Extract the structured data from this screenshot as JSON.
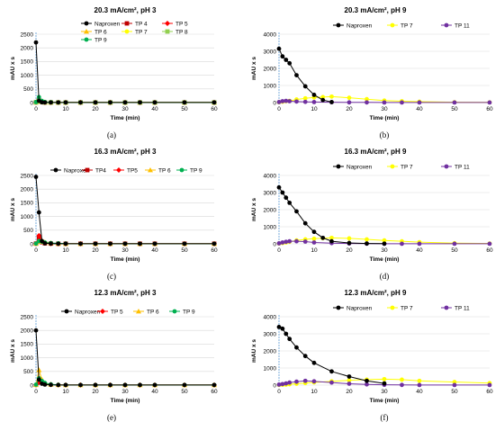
{
  "colors": {
    "Naproxen": "#000000",
    "TP 4": "#c00000",
    "TP 5": "#ff0000",
    "TP 6": "#ffc000",
    "TP 7": "#ffff00",
    "TP 8": "#92d050",
    "TP 9": "#00b050",
    "TP 11": "#7030a0"
  },
  "chart_data": [
    {
      "panel": "(a)",
      "type": "line",
      "title": "20.3 mA/cm², pH 3",
      "xlabel": "Time (min)",
      "ylabel": "mAU x s",
      "xlim": [
        0,
        60
      ],
      "ylim": [
        0,
        2500
      ],
      "xticks": [
        0,
        10,
        20,
        30,
        40,
        50,
        60
      ],
      "yticks": [
        0,
        500,
        1000,
        1500,
        2000,
        2500
      ],
      "legend": "top-right, 3 columns",
      "series": [
        {
          "name": "Naproxen",
          "marker": "circle",
          "line": true,
          "x": [
            0,
            1,
            2,
            3,
            5,
            7.5,
            10,
            15,
            20,
            25,
            30,
            35,
            40,
            50,
            60
          ],
          "y": [
            2200,
            60,
            10,
            5,
            5,
            5,
            5,
            5,
            5,
            5,
            5,
            5,
            5,
            5,
            5
          ]
        },
        {
          "name": "TP 4",
          "marker": "square",
          "line": true,
          "x": [
            0,
            1,
            2,
            3,
            5,
            7.5,
            10,
            15,
            20,
            25,
            30,
            35,
            40,
            50,
            60
          ],
          "y": [
            10,
            80,
            20,
            5,
            5,
            5,
            5,
            5,
            5,
            5,
            5,
            5,
            5,
            5,
            5
          ]
        },
        {
          "name": "TP 5",
          "marker": "diamond",
          "line": true,
          "x": [
            0,
            1,
            2,
            3,
            5,
            7.5,
            10,
            15,
            20,
            25,
            30,
            35,
            40,
            50,
            60
          ],
          "y": [
            10,
            120,
            30,
            5,
            5,
            5,
            5,
            5,
            5,
            5,
            5,
            5,
            5,
            5,
            5
          ]
        },
        {
          "name": "TP 6",
          "marker": "triangle",
          "line": true,
          "x": [
            0,
            1,
            2,
            3,
            5,
            7.5,
            10,
            15,
            20,
            25,
            30,
            35,
            40,
            50,
            60
          ],
          "y": [
            10,
            150,
            40,
            10,
            5,
            5,
            5,
            5,
            5,
            5,
            5,
            5,
            5,
            5,
            5
          ]
        },
        {
          "name": "TP 7",
          "marker": "circle",
          "line": true,
          "x": [
            0,
            1,
            2,
            3,
            5,
            7.5,
            10,
            15,
            20,
            25,
            30,
            35,
            40,
            50,
            60
          ],
          "y": [
            10,
            40,
            20,
            10,
            5,
            5,
            5,
            5,
            5,
            5,
            5,
            5,
            5,
            5,
            5
          ]
        },
        {
          "name": "TP 8",
          "marker": "square",
          "line": true,
          "x": [
            0,
            1,
            2,
            3,
            5,
            7.5,
            10,
            15,
            20,
            25,
            30,
            35,
            40,
            50,
            60
          ],
          "y": [
            10,
            60,
            20,
            5,
            5,
            5,
            5,
            5,
            5,
            5,
            5,
            5,
            5,
            5,
            5
          ]
        },
        {
          "name": "TP 9",
          "marker": "circle",
          "line": true,
          "x": [
            0,
            1,
            2,
            3,
            5,
            7.5,
            10,
            15,
            20,
            25,
            30,
            35,
            40,
            50,
            60
          ],
          "y": [
            20,
            200,
            60,
            20,
            10,
            5,
            5,
            5,
            5,
            5,
            5,
            5,
            5,
            5,
            5
          ]
        }
      ]
    },
    {
      "panel": "(b)",
      "type": "line",
      "title": "20.3 mA/cm², pH 9",
      "xlabel": "Time (min)",
      "ylabel": "mAU x s",
      "xlim": [
        0,
        60
      ],
      "ylim": [
        0,
        4000
      ],
      "xticks": [
        0,
        10,
        20,
        30,
        40,
        50,
        60
      ],
      "yticks": [
        0,
        1000,
        2000,
        3000,
        4000
      ],
      "legend": "top-right, 3 columns",
      "series": [
        {
          "name": "Naproxen",
          "marker": "circle",
          "line": true,
          "x": [
            0,
            1,
            2,
            3,
            5,
            7.5,
            10,
            12.5,
            15
          ],
          "y": [
            3150,
            2700,
            2500,
            2300,
            1600,
            950,
            450,
            150,
            30
          ]
        },
        {
          "name": "TP 7",
          "marker": "circle",
          "line": true,
          "x": [
            0,
            1,
            2,
            3,
            5,
            7.5,
            10,
            12.5,
            15,
            20,
            25,
            30,
            35,
            40,
            50,
            60
          ],
          "y": [
            20,
            50,
            80,
            100,
            180,
            250,
            300,
            320,
            350,
            280,
            200,
            120,
            80,
            50,
            20,
            10
          ]
        },
        {
          "name": "TP 11",
          "marker": "circle",
          "line": true,
          "x": [
            0,
            1,
            2,
            3,
            5,
            7.5,
            10,
            15,
            20,
            25,
            30,
            35,
            40,
            50,
            60
          ],
          "y": [
            30,
            80,
            100,
            80,
            60,
            40,
            30,
            20,
            10,
            10,
            5,
            5,
            5,
            5,
            5
          ]
        }
      ]
    },
    {
      "panel": "(c)",
      "type": "line",
      "title": "16.3 mA/cm², pH 3",
      "xlabel": "Time (min)",
      "ylabel": "mAU x s",
      "xlim": [
        0,
        60
      ],
      "ylim": [
        0,
        2500
      ],
      "xticks": [
        0,
        10,
        20,
        30,
        40,
        50,
        60
      ],
      "yticks": [
        0,
        500,
        1000,
        1500,
        2000,
        2500
      ],
      "legend": "top-right, 1 row",
      "series": [
        {
          "name": "Naproxen",
          "marker": "circle",
          "line": true,
          "x": [
            0,
            1,
            2,
            3,
            5,
            7.5,
            10,
            15,
            20,
            25,
            30,
            35,
            40,
            50,
            60
          ],
          "y": [
            2450,
            1150,
            100,
            20,
            10,
            5,
            5,
            5,
            5,
            5,
            5,
            5,
            5,
            5,
            5
          ]
        },
        {
          "name": "TP4",
          "marker": "square",
          "line": true,
          "x": [
            0,
            1,
            2,
            3,
            5,
            7.5,
            10,
            15,
            20,
            25,
            30,
            35,
            40,
            50,
            60
          ],
          "y": [
            10,
            200,
            60,
            20,
            10,
            5,
            5,
            5,
            5,
            5,
            5,
            5,
            5,
            5,
            5
          ]
        },
        {
          "name": "TP5",
          "marker": "diamond",
          "line": true,
          "x": [
            0,
            1,
            2,
            3,
            5,
            7.5,
            10,
            15,
            20,
            25,
            30,
            35,
            40,
            50,
            60
          ],
          "y": [
            10,
            300,
            100,
            30,
            10,
            5,
            5,
            5,
            5,
            5,
            5,
            5,
            5,
            5,
            5
          ]
        },
        {
          "name": "TP 6",
          "marker": "triangle",
          "line": true,
          "x": [
            0,
            1,
            2,
            3,
            5,
            7.5,
            10,
            15,
            20,
            25,
            30,
            35,
            40,
            50,
            60
          ],
          "y": [
            10,
            80,
            120,
            60,
            30,
            10,
            5,
            5,
            5,
            5,
            5,
            5,
            5,
            5,
            5
          ]
        },
        {
          "name": "TP 9",
          "marker": "circle",
          "line": true,
          "x": [
            0,
            1,
            2,
            3,
            5,
            7.5,
            10,
            15,
            20,
            25,
            30,
            35,
            40,
            50,
            60
          ],
          "y": [
            10,
            100,
            80,
            50,
            30,
            20,
            10,
            5,
            5,
            5,
            5,
            5,
            5,
            5,
            5
          ]
        }
      ]
    },
    {
      "panel": "(d)",
      "type": "line",
      "title": "16.3 mA/cm², pH 9",
      "xlabel": "Time (min)",
      "ylabel": "mAU x s",
      "xlim": [
        0,
        60
      ],
      "ylim": [
        0,
        4000
      ],
      "xticks": [
        0,
        10,
        20,
        30,
        40,
        50,
        60
      ],
      "yticks": [
        0,
        1000,
        2000,
        3000,
        4000
      ],
      "legend": "top-right, 3 columns",
      "series": [
        {
          "name": "Naproxen",
          "marker": "circle",
          "line": true,
          "x": [
            0,
            1,
            2,
            3,
            5,
            7.5,
            10,
            12.5,
            15,
            20,
            25,
            30
          ],
          "y": [
            3300,
            3000,
            2700,
            2400,
            1900,
            1200,
            700,
            350,
            150,
            50,
            20,
            10
          ]
        },
        {
          "name": "TP 7",
          "marker": "circle",
          "line": true,
          "x": [
            0,
            1,
            2,
            3,
            5,
            7.5,
            10,
            12.5,
            15,
            20,
            25,
            30,
            35,
            40,
            50,
            60
          ],
          "y": [
            20,
            50,
            80,
            120,
            200,
            260,
            300,
            330,
            350,
            320,
            260,
            200,
            150,
            100,
            40,
            20
          ]
        },
        {
          "name": "TP 11",
          "marker": "circle",
          "line": true,
          "x": [
            0,
            1,
            2,
            3,
            5,
            7.5,
            10,
            15,
            20,
            25,
            30,
            35,
            40,
            50,
            60
          ],
          "y": [
            30,
            80,
            120,
            150,
            150,
            130,
            80,
            40,
            20,
            10,
            5,
            5,
            5,
            5,
            5
          ]
        }
      ]
    },
    {
      "panel": "(e)",
      "type": "line",
      "title": "12.3 mA/cm², pH 3",
      "xlabel": "Time (min)",
      "ylabel": "mAU x s",
      "xlim": [
        0,
        60
      ],
      "ylim": [
        0,
        2500
      ],
      "xticks": [
        0,
        10,
        20,
        30,
        40,
        50,
        60
      ],
      "yticks": [
        0,
        500,
        1000,
        1500,
        2000,
        2500
      ],
      "legend": "top-right, 1 row",
      "series": [
        {
          "name": "Naproxen",
          "marker": "circle",
          "line": true,
          "x": [
            0,
            1,
            2,
            3,
            5,
            7.5,
            10,
            15,
            20,
            25,
            30,
            35,
            40,
            50,
            60
          ],
          "y": [
            2000,
            200,
            50,
            20,
            10,
            5,
            5,
            5,
            5,
            5,
            5,
            5,
            5,
            5,
            5
          ]
        },
        {
          "name": "TP 5",
          "marker": "diamond",
          "line": true,
          "x": [
            0,
            1,
            2,
            3,
            5,
            7.5,
            10,
            15,
            20,
            25,
            30,
            35,
            40,
            50,
            60
          ],
          "y": [
            10,
            100,
            150,
            60,
            20,
            10,
            5,
            5,
            5,
            5,
            5,
            5,
            5,
            5,
            5
          ]
        },
        {
          "name": "TP 6",
          "marker": "triangle",
          "line": true,
          "x": [
            0,
            1,
            2,
            3,
            5,
            7.5,
            10,
            15,
            20,
            25,
            30,
            35,
            40,
            50,
            60
          ],
          "y": [
            10,
            550,
            200,
            60,
            20,
            10,
            5,
            5,
            5,
            5,
            5,
            5,
            5,
            5,
            5
          ]
        },
        {
          "name": "TP 9",
          "marker": "circle",
          "line": true,
          "x": [
            0,
            1,
            2,
            3,
            5,
            7.5,
            10,
            15,
            20,
            25,
            30,
            35,
            40,
            50,
            60
          ],
          "y": [
            20,
            250,
            150,
            80,
            30,
            10,
            5,
            5,
            5,
            5,
            5,
            5,
            5,
            5,
            5
          ]
        }
      ]
    },
    {
      "panel": "(f)",
      "type": "line",
      "title": "12.3 mA/cm², pH 9",
      "xlabel": "Time (min)",
      "ylabel": "mAU x s",
      "xlim": [
        0,
        60
      ],
      "ylim": [
        0,
        4000
      ],
      "xticks": [
        0,
        10,
        20,
        30,
        40,
        50,
        60
      ],
      "yticks": [
        0,
        1000,
        2000,
        3000,
        4000
      ],
      "legend": "top-right, 3 columns",
      "series": [
        {
          "name": "Naproxen",
          "marker": "circle",
          "line": true,
          "x": [
            0,
            1,
            2,
            3,
            5,
            7.5,
            10,
            15,
            20,
            25,
            30
          ],
          "y": [
            3400,
            3300,
            3000,
            2700,
            2200,
            1700,
            1300,
            800,
            500,
            250,
            100
          ]
        },
        {
          "name": "TP 7",
          "marker": "circle",
          "line": true,
          "x": [
            0,
            1,
            2,
            3,
            5,
            7.5,
            10,
            15,
            20,
            25,
            30,
            35,
            40,
            50,
            60
          ],
          "y": [
            10,
            20,
            30,
            50,
            80,
            120,
            160,
            220,
            280,
            320,
            350,
            320,
            250,
            180,
            120
          ]
        },
        {
          "name": "TP 11",
          "marker": "circle",
          "line": true,
          "x": [
            0,
            1,
            2,
            3,
            5,
            7.5,
            10,
            15,
            20,
            25,
            30,
            35,
            40,
            50,
            60
          ],
          "y": [
            30,
            60,
            100,
            150,
            200,
            250,
            220,
            150,
            80,
            40,
            20,
            10,
            5,
            5,
            5
          ]
        }
      ]
    }
  ]
}
